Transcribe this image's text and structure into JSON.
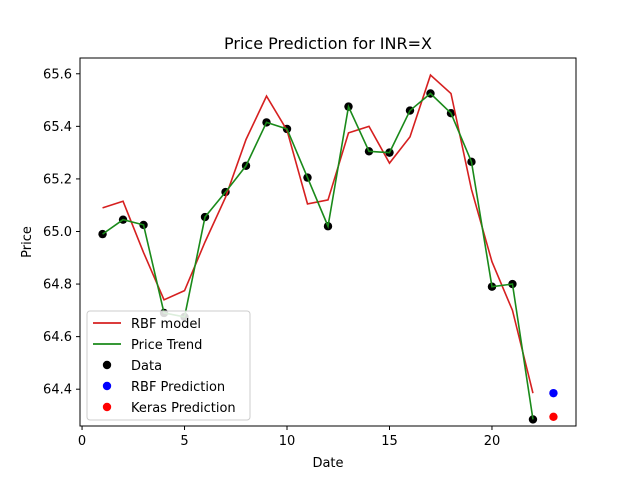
{
  "chart_data": {
    "type": "line",
    "title": "Price Prediction for INR=X",
    "xlabel": "Date",
    "ylabel": "Price",
    "xlim": [
      -0.1,
      24.1
    ],
    "ylim": [
      64.26,
      65.66
    ],
    "xticks": [
      0,
      5,
      10,
      15,
      20
    ],
    "xtick_labels": [
      "0",
      "5",
      "10",
      "15",
      "20"
    ],
    "yticks": [
      64.4,
      64.6,
      64.8,
      65.0,
      65.2,
      65.4,
      65.6
    ],
    "ytick_labels": [
      "64.4",
      "64.6",
      "64.8",
      "65.0",
      "65.2",
      "65.4",
      "65.6"
    ],
    "grid": false,
    "legend_position": "lower-left",
    "legend": [
      {
        "label": "RBF model",
        "kind": "line",
        "color": "#d62020"
      },
      {
        "label": "Price Trend",
        "kind": "line",
        "color": "#1a8a1a"
      },
      {
        "label": "Data",
        "kind": "marker",
        "color": "#000000"
      },
      {
        "label": "RBF Prediction",
        "kind": "marker",
        "color": "#0000ff"
      },
      {
        "label": "Keras Prediction",
        "kind": "marker",
        "color": "#ff0000"
      }
    ],
    "series": [
      {
        "name": "RBF model",
        "kind": "line",
        "color": "#d62020",
        "x": [
          1,
          2,
          3,
          4,
          5,
          6,
          7,
          8,
          9,
          10,
          11,
          12,
          13,
          14,
          15,
          16,
          17,
          18,
          19,
          20,
          21,
          22
        ],
        "y": [
          65.09,
          65.115,
          64.92,
          64.74,
          64.775,
          64.96,
          65.13,
          65.35,
          65.515,
          65.385,
          65.105,
          65.12,
          65.375,
          65.4,
          65.26,
          65.36,
          65.595,
          65.525,
          65.16,
          64.885,
          64.7,
          64.385
        ]
      },
      {
        "name": "Price Trend",
        "kind": "line",
        "color": "#1a8a1a",
        "x": [
          1,
          2,
          3,
          4,
          5,
          6,
          7,
          8,
          9,
          10,
          11,
          12,
          13,
          14,
          15,
          16,
          17,
          18,
          19,
          20,
          21,
          22
        ],
        "y": [
          64.99,
          65.045,
          65.025,
          64.69,
          64.675,
          65.055,
          65.15,
          65.25,
          65.415,
          65.39,
          65.205,
          65.02,
          65.475,
          65.305,
          65.3,
          65.46,
          65.525,
          65.45,
          65.265,
          64.79,
          64.8,
          64.285
        ]
      },
      {
        "name": "Data",
        "kind": "scatter",
        "color": "#000000",
        "x": [
          1,
          2,
          3,
          4,
          5,
          6,
          7,
          8,
          9,
          10,
          11,
          12,
          13,
          14,
          15,
          16,
          17,
          18,
          19,
          20,
          21,
          22
        ],
        "y": [
          64.99,
          65.045,
          65.025,
          64.69,
          64.675,
          65.055,
          65.15,
          65.25,
          65.415,
          65.39,
          65.205,
          65.02,
          65.475,
          65.305,
          65.3,
          65.46,
          65.525,
          65.45,
          65.265,
          64.79,
          64.8,
          64.285
        ]
      },
      {
        "name": "RBF Prediction",
        "kind": "scatter",
        "color": "#0000ff",
        "x": [
          23
        ],
        "y": [
          64.385
        ]
      },
      {
        "name": "Keras Prediction",
        "kind": "scatter",
        "color": "#ff0000",
        "x": [
          23
        ],
        "y": [
          64.295
        ]
      }
    ]
  }
}
